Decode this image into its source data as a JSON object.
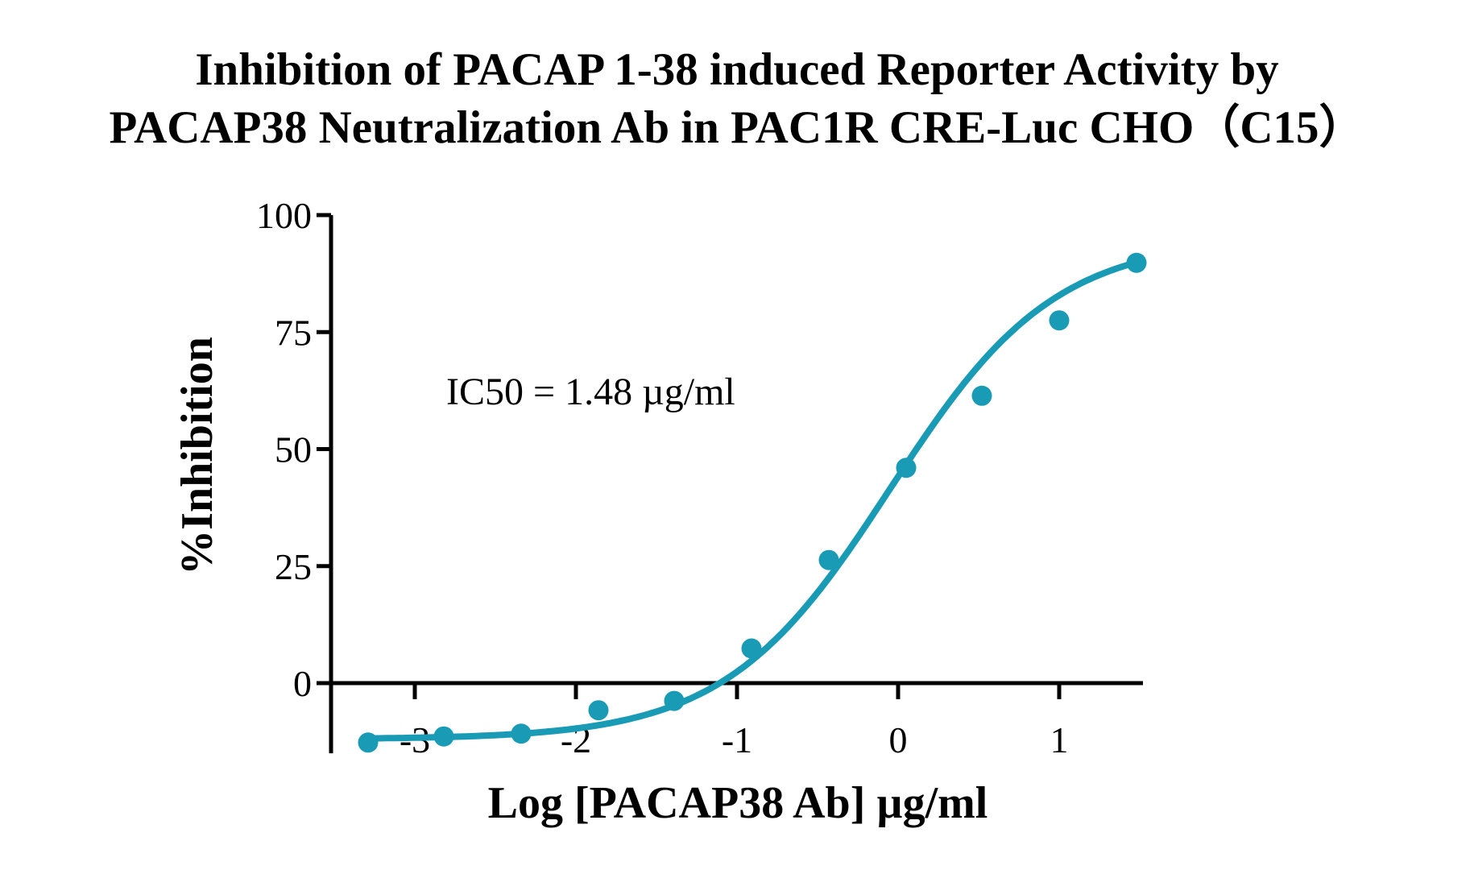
{
  "chart_data": {
    "type": "scatter",
    "title_lines": [
      "Inhibition of PACAP 1-38 induced Reporter Activity by",
      "PACAP38 Neutralization Ab in PAC1R CRE-Luc CHO（C15）"
    ],
    "xlabel": "Log [PACAP38 Ab] µg/ml",
    "ylabel": "%Inhibition",
    "annotation": "IC50 = 1.48 µg/ml",
    "xlim": [
      -3.5,
      1.52
    ],
    "ylim": [
      -15,
      100
    ],
    "x_ticks": [
      -3,
      -2,
      -1,
      0,
      1
    ],
    "x_tick_labels": [
      "-3",
      "-2",
      "-1",
      "0",
      "1"
    ],
    "y_ticks": [
      0,
      25,
      50,
      75,
      100
    ],
    "y_tick_labels": [
      "0",
      "25",
      "50",
      "75",
      "100"
    ],
    "grid": false,
    "legend": "none",
    "color": "#1a9bb5",
    "series": [
      {
        "x": [
          -3.29,
          -2.82,
          -2.34,
          -1.86,
          -1.39,
          -0.91,
          -0.43,
          0.05,
          0.52,
          1.0,
          1.48
        ],
        "y": [
          -12.7,
          -11.4,
          -10.8,
          -5.8,
          -3.8,
          7.4,
          26.3,
          46.0,
          61.4,
          77.5,
          89.8
        ]
      }
    ],
    "fit": {
      "model": "4PL",
      "bottom": -12,
      "top": 95,
      "logIC50": -0.05,
      "hill": 0.85
    }
  }
}
